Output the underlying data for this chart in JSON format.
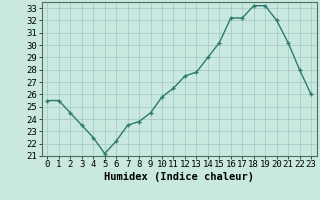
{
  "x": [
    0,
    1,
    2,
    3,
    4,
    5,
    6,
    7,
    8,
    9,
    10,
    11,
    12,
    13,
    14,
    15,
    16,
    17,
    18,
    19,
    20,
    21,
    22,
    23
  ],
  "y": [
    25.5,
    25.5,
    24.5,
    23.5,
    22.5,
    21.2,
    22.2,
    23.5,
    23.8,
    24.5,
    25.8,
    26.5,
    27.5,
    27.8,
    29.0,
    30.2,
    32.2,
    32.2,
    33.2,
    33.2,
    32.0,
    30.2,
    28.0,
    26.0
  ],
  "line_color": "#2e7b6e",
  "marker": "+",
  "xlabel": "Humidex (Indice chaleur)",
  "ylim": [
    21,
    33.5
  ],
  "xlim": [
    -0.5,
    23.5
  ],
  "yticks": [
    21,
    22,
    23,
    24,
    25,
    26,
    27,
    28,
    29,
    30,
    31,
    32,
    33
  ],
  "bg_color": "#c8e8e0",
  "grid_color": "#a8ccc4",
  "tick_fontsize": 6.5,
  "xlabel_fontsize": 7.5
}
